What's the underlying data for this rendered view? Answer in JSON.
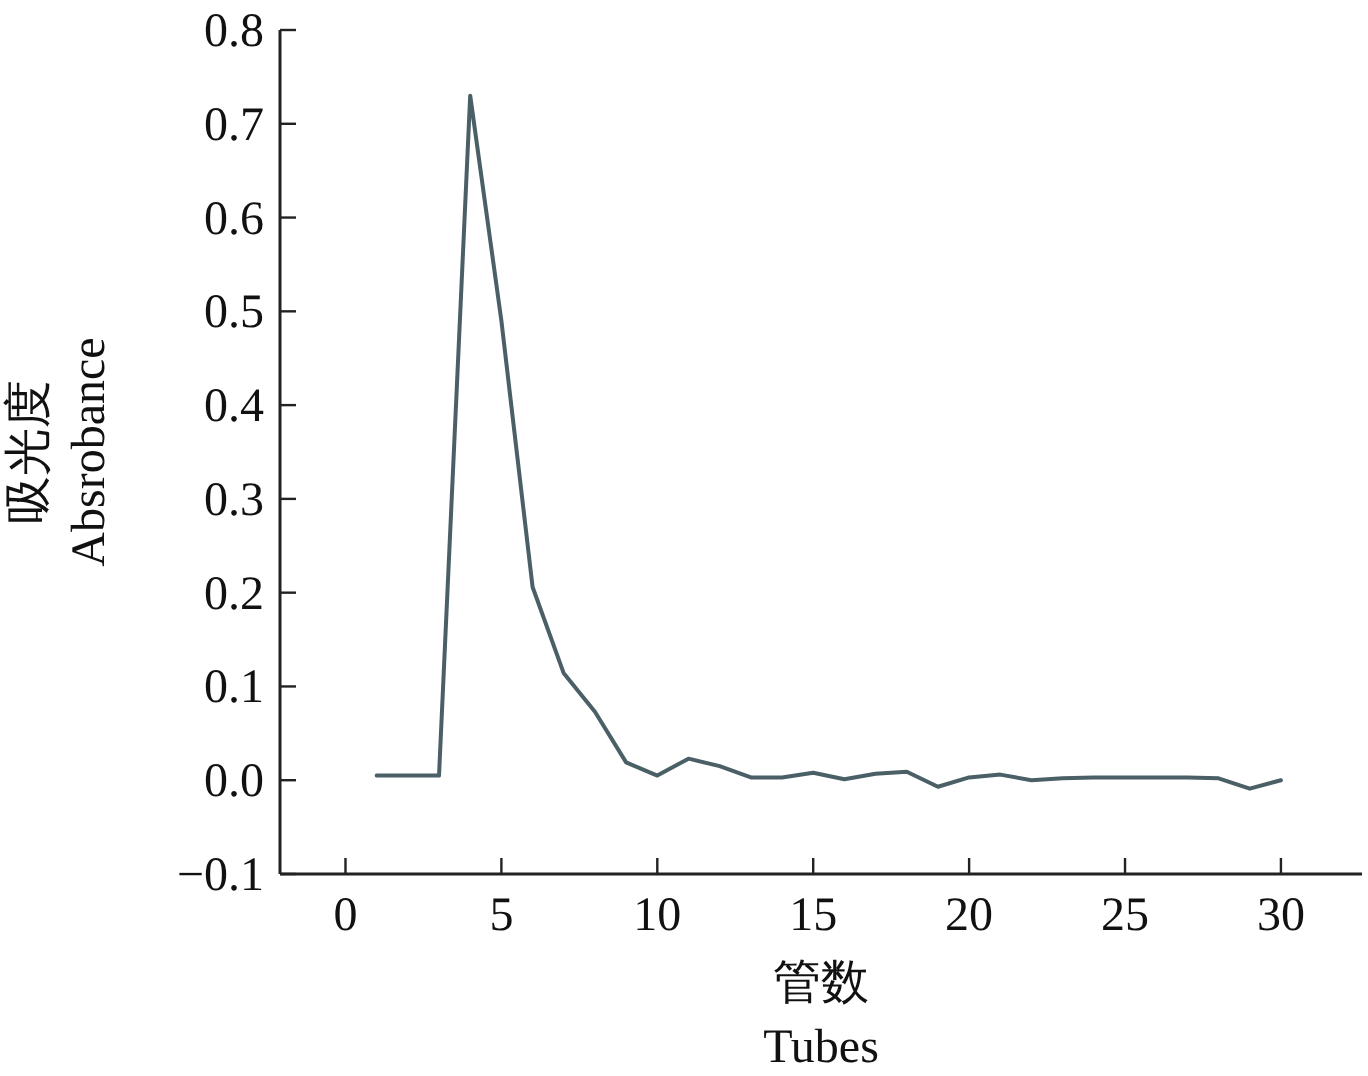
{
  "chart_data": {
    "type": "line",
    "xlabel": "管数\nTubes",
    "ylabel": "吸光度\nAbsrobance",
    "x": [
      1,
      2,
      3,
      4,
      5,
      6,
      7,
      8,
      9,
      10,
      11,
      12,
      13,
      14,
      15,
      16,
      17,
      18,
      19,
      20,
      21,
      22,
      23,
      24,
      25,
      26,
      27,
      28,
      29,
      30
    ],
    "series": [
      {
        "color": "#4a5f66",
        "values": [
          0.005,
          0.005,
          0.005,
          0.73,
          0.49,
          0.206,
          0.114,
          0.073,
          0.019,
          0.005,
          0.023,
          0.015,
          0.003,
          0.003,
          0.008,
          0.001,
          0.007,
          0.009,
          -0.007,
          0.003,
          0.006,
          0.0,
          0.002,
          0.003,
          0.003,
          0.003,
          0.003,
          0.002,
          -0.009,
          0.0
        ]
      }
    ],
    "xlim": [
      -2.1,
      32.6
    ],
    "ylim": [
      -0.1,
      0.8
    ],
    "xticks": [
      0,
      5,
      10,
      15,
      20,
      25,
      30
    ],
    "yticks": [
      {
        "value": -0.1,
        "label": "−0.1"
      },
      {
        "value": 0,
        "label": "0.0"
      },
      {
        "value": 0.1,
        "label": "0.1"
      },
      {
        "value": 0.2,
        "label": "0.2"
      },
      {
        "value": 0.3,
        "label": "0.3"
      },
      {
        "value": 0.4,
        "label": "0.4"
      },
      {
        "value": 0.5,
        "label": "0.5"
      },
      {
        "value": 0.6,
        "label": "0.6"
      },
      {
        "value": 0.7,
        "label": "0.7"
      },
      {
        "value": 0.8,
        "label": "0.8"
      }
    ],
    "grid": false,
    "marker": "none",
    "line_style": "solid"
  }
}
